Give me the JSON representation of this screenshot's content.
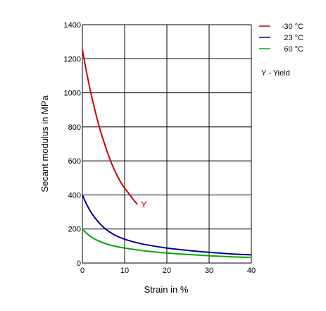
{
  "chart_data": {
    "type": "line",
    "title": "",
    "xlabel": "Strain in %",
    "ylabel": "Secant modulus in MPa",
    "xlim": [
      0,
      40
    ],
    "ylim": [
      0,
      1400
    ],
    "x_ticks": [
      0,
      10,
      20,
      30,
      40
    ],
    "y_ticks": [
      0,
      200,
      400,
      600,
      800,
      1000,
      1200,
      1400
    ],
    "grid": true,
    "legend_position": "top-right",
    "note": "Y - Yield",
    "series": [
      {
        "name": "-30 °C",
        "color": "#cc0000",
        "points": [
          [
            0,
            1255
          ],
          [
            1,
            1120
          ],
          [
            2,
            1000
          ],
          [
            3,
            895
          ],
          [
            4,
            800
          ],
          [
            5,
            720
          ],
          [
            6,
            645
          ],
          [
            7,
            580
          ],
          [
            8,
            525
          ],
          [
            9,
            478
          ],
          [
            10,
            440
          ],
          [
            11,
            408
          ],
          [
            12,
            375
          ],
          [
            13,
            345
          ]
        ],
        "end_label": "Y"
      },
      {
        "name": "23 °C",
        "color": "#000099",
        "points": [
          [
            0,
            400
          ],
          [
            1,
            345
          ],
          [
            2,
            300
          ],
          [
            3,
            265
          ],
          [
            4,
            235
          ],
          [
            5,
            210
          ],
          [
            6,
            190
          ],
          [
            8,
            160
          ],
          [
            10,
            140
          ],
          [
            12,
            125
          ],
          [
            15,
            108
          ],
          [
            20,
            88
          ],
          [
            25,
            74
          ],
          [
            30,
            63
          ],
          [
            35,
            54
          ],
          [
            40,
            48
          ]
        ]
      },
      {
        "name": "60 °C",
        "color": "#00aa00",
        "points": [
          [
            0,
            200
          ],
          [
            1,
            175
          ],
          [
            2,
            155
          ],
          [
            3,
            140
          ],
          [
            4,
            128
          ],
          [
            5,
            118
          ],
          [
            7,
            103
          ],
          [
            10,
            88
          ],
          [
            13,
            77
          ],
          [
            16,
            68
          ],
          [
            20,
            59
          ],
          [
            25,
            50
          ],
          [
            30,
            43
          ],
          [
            35,
            37
          ],
          [
            40,
            33
          ]
        ]
      }
    ]
  }
}
